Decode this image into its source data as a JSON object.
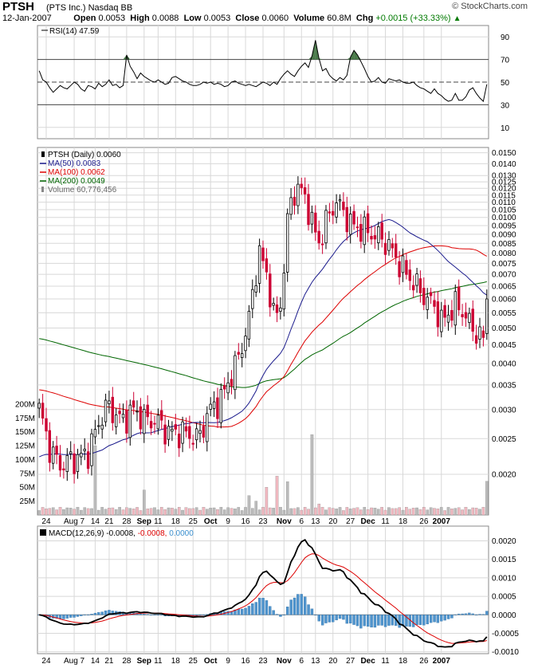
{
  "header": {
    "symbol": "PTSH",
    "name": "(PTS Inc.)",
    "exchange": "Nasdaq BB",
    "date": "12-Jan-2007",
    "open_label": "Open",
    "open": "0.0053",
    "high_label": "High",
    "high": "0.0088",
    "low_label": "Low",
    "low": "0.0053",
    "close_label": "Close",
    "close": "0.0060",
    "volume_label": "Volume",
    "volume": "60.8M",
    "chg_label": "Chg",
    "chg": "+0.0015 (+33.33%)",
    "brand": "© StockCharts.com"
  },
  "colors": {
    "grid": "#d8d8d8",
    "up_candle": "#000000",
    "down_candle": "#cc0033",
    "ma50": "#1a1a8c",
    "ma100": "#dd0000",
    "ma200": "#006600",
    "volume_up": "#bbbbbb",
    "volume_down": "#f0b8c0",
    "macd_line": "#000000",
    "macd_signal": "#dd0000",
    "macd_hist": "#4f94cd",
    "rsi_fill": "#4a7a4a"
  },
  "chart_data": [
    {
      "type": "line",
      "panel": "rsi",
      "legend": "RSI(14) 47.59",
      "ylim": [
        0,
        100
      ],
      "y_ticks": [
        10,
        30,
        50,
        70,
        90
      ],
      "reference_lines": [
        30,
        50,
        70
      ],
      "series": [
        {
          "name": "RSI(14)",
          "values": [
            60,
            52,
            50,
            45,
            41,
            44,
            47,
            45,
            44,
            47,
            50,
            48,
            44,
            42,
            47,
            46,
            44,
            49,
            46,
            48,
            52,
            47,
            48,
            45,
            47,
            74,
            64,
            59,
            53,
            58,
            55,
            53,
            51,
            50,
            52,
            50,
            48,
            49,
            54,
            55,
            53,
            51,
            50,
            48,
            47,
            47,
            48,
            50,
            49,
            50,
            48,
            49,
            48,
            46,
            47,
            50,
            51,
            49,
            48,
            47,
            48,
            47,
            46,
            48,
            50,
            49,
            47,
            50,
            48,
            53,
            57,
            60,
            57,
            55,
            60,
            64,
            67,
            63,
            73,
            87,
            71,
            60,
            62,
            56,
            53,
            51,
            54,
            52,
            56,
            72,
            78,
            74,
            68,
            62,
            55,
            50,
            51,
            54,
            50,
            49,
            53,
            52,
            51,
            52,
            50,
            49,
            49,
            50,
            47,
            45,
            44,
            42,
            40,
            44,
            40,
            38,
            35,
            33,
            34,
            40,
            34,
            34,
            37,
            43,
            45,
            40,
            36,
            33,
            48
          ]
        }
      ]
    },
    {
      "type": "candlestick",
      "panel": "price",
      "legend": [
        "PTSH (Daily) 0.0060",
        "MA(50) 0.0083",
        "MA(100) 0.0062",
        "MA(200) 0.0049",
        "Volume 60,776,456"
      ],
      "scale": "log",
      "ylim": [
        0.00155,
        0.0155
      ],
      "y_ticks": [
        "0.0020",
        "0.0025",
        "0.0030",
        "0.0035",
        "0.0040",
        "0.0045",
        "0.0050",
        "0.0055",
        "0.0060",
        "0.0065",
        "0.0070",
        "0.0075",
        "0.0080",
        "0.0085",
        "0.0090",
        "0.0095",
        "0.0100",
        "0.0105",
        "0.0110",
        "0.0115",
        "0.0120",
        "0.0125",
        "0.0130",
        "0.0140",
        "0.0150"
      ],
      "volume_ticks": [
        "25M",
        "50M",
        "75M",
        "100M",
        "125M",
        "150M",
        "175M",
        "200M"
      ],
      "x_labels": [
        "24",
        "Aug 7",
        "14",
        "21",
        "28",
        "Sep",
        "11",
        "18",
        "25",
        "Oct",
        "9",
        "16",
        "23",
        "Nov",
        "6",
        "13",
        "20",
        "27",
        "Dec",
        "11",
        "18",
        "26",
        "2007"
      ],
      "ma_values": {
        "ma50": "0.0083",
        "ma100": "0.0062",
        "ma200": "0.0049"
      },
      "last_close": "0.0060",
      "last_volume": "60,776,456"
    },
    {
      "type": "bar",
      "panel": "macd",
      "legend_prefix": "MACD(12,26,9)",
      "legend_macd": "-0.0008",
      "legend_signal": "-0.0008",
      "legend_hist": "0.0000",
      "ylim": [
        -0.00105,
        0.0024
      ],
      "y_ticks": [
        "-0.0010",
        "-0.0005",
        "0.0000",
        "0.0005",
        "0.0010",
        "0.0015",
        "0.0020"
      ],
      "x_labels": [
        "24",
        "Aug 7",
        "14",
        "21",
        "28",
        "Sep",
        "11",
        "18",
        "25",
        "Oct",
        "9",
        "16",
        "23",
        "Nov",
        "6",
        "13",
        "20",
        "27",
        "Dec",
        "11",
        "18",
        "26",
        "2007"
      ]
    }
  ]
}
